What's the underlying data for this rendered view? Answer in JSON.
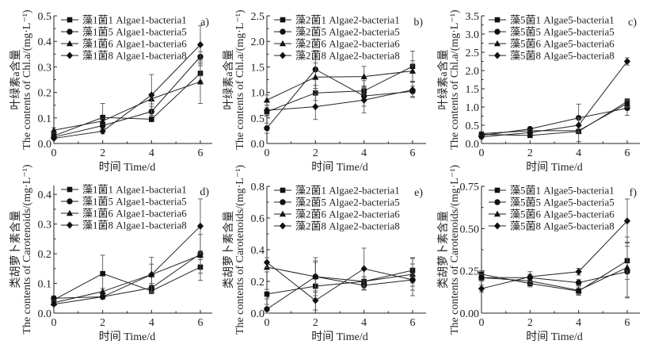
{
  "chart_data": [
    {
      "id": "a",
      "type": "line",
      "panel_label": "a)",
      "xlabel": "时间 Time/d",
      "ylabel_cn": "叶绿素a含量",
      "ylabel_en": "The contents of Chl.a/(mg·L⁻¹)",
      "x": [
        0,
        2,
        4,
        6
      ],
      "xticks": [
        "0",
        "2",
        "4",
        "6"
      ],
      "ylim": [
        0,
        0.5
      ],
      "yticks": [
        "0.0",
        "0.1",
        "0.2",
        "0.3",
        "0.4",
        "0.5"
      ],
      "legend_position": "top-left",
      "series": [
        {
          "name": "藻1菌1 Algae1-bacteria1",
          "marker": "square",
          "values": [
            0.03,
            0.102,
            0.095,
            0.275
          ],
          "errors": [
            0.008,
            0.055,
            0.01,
            0.03
          ]
        },
        {
          "name": "藻1菌5 Algae1-bacteria5",
          "marker": "circle",
          "values": [
            0.025,
            0.07,
            0.125,
            0.34
          ],
          "errors": [
            0.008,
            0.01,
            0.02,
            0.02
          ]
        },
        {
          "name": "藻1菌6  Algae1-bacteria6",
          "marker": "triangle",
          "values": [
            0.052,
            0.088,
            0.175,
            0.242
          ],
          "errors": [
            0.01,
            0.01,
            0.02,
            0.085
          ]
        },
        {
          "name": "藻1菌8 Algae1-bacteria8",
          "marker": "diamond",
          "values": [
            0.02,
            0.048,
            0.19,
            0.387
          ],
          "errors": [
            0.005,
            0.01,
            0.08,
            0.075
          ]
        }
      ]
    },
    {
      "id": "b",
      "type": "line",
      "panel_label": "b)",
      "xlabel": "时间 Time/d",
      "ylabel_cn": "叶绿素a含量",
      "ylabel_en": "The contents of Chl.a/(mg·L⁻¹)",
      "x": [
        0,
        2,
        4,
        6
      ],
      "xticks": [
        "0",
        "2",
        "4",
        "6"
      ],
      "ylim": [
        0,
        2.5
      ],
      "yticks": [
        "0.0",
        "0.5",
        "1.0",
        "1.5",
        "2.0",
        "2.5"
      ],
      "legend_position": "top-left",
      "series": [
        {
          "name": "藻2菌1 Algae2-bacteria1",
          "marker": "square",
          "values": [
            0.62,
            0.99,
            1.03,
            1.51
          ],
          "errors": [
            0.08,
            0.15,
            0.2,
            0.3
          ]
        },
        {
          "name": "藻2菌5 Algae2-bacteria5",
          "marker": "circle",
          "values": [
            0.3,
            1.45,
            0.93,
            1.02
          ],
          "errors": [
            0.1,
            0.37,
            0.2,
            0.1
          ]
        },
        {
          "name": "藻2菌6  Algae2-bacteria6",
          "marker": "triangle",
          "values": [
            0.85,
            1.3,
            1.31,
            1.42
          ],
          "errors": [
            0.1,
            0.28,
            0.2,
            0.2
          ]
        },
        {
          "name": "藻2菌8 Algae2-bacteria8",
          "marker": "diamond",
          "values": [
            0.65,
            0.72,
            0.85,
            1.05
          ],
          "errors": [
            0.1,
            0.25,
            0.25,
            0.15
          ]
        }
      ]
    },
    {
      "id": "c",
      "type": "line",
      "panel_label": "c)",
      "xlabel": "时间 Time/d",
      "ylabel_cn": "叶绿素a含量",
      "ylabel_en": "The contents of Chl.a/(mg·L⁻¹)",
      "x": [
        0,
        2,
        4,
        6
      ],
      "xticks": [
        "0",
        "2",
        "4",
        "6"
      ],
      "ylim": [
        0,
        3.5
      ],
      "yticks": [
        "0.0",
        "0.5",
        "1.0",
        "1.5",
        "2.0",
        "2.5",
        "3.0",
        "3.5"
      ],
      "legend_position": "top-left",
      "series": [
        {
          "name": "藻5菌1 Algae5-bacteria1",
          "marker": "square",
          "values": [
            0.25,
            0.22,
            0.33,
            1.15
          ],
          "errors": [
            0.05,
            0.03,
            0.05,
            0.08
          ]
        },
        {
          "name": "藻5菌5 Algae5-bacteria5",
          "marker": "circle",
          "values": [
            0.22,
            0.4,
            0.7,
            0.97
          ],
          "errors": [
            0.05,
            0.03,
            0.38,
            0.2
          ]
        },
        {
          "name": "藻5菌6  Algae5-bacteria6",
          "marker": "triangle",
          "values": [
            0.27,
            0.35,
            0.35,
            1.1
          ],
          "errors": [
            0.05,
            0.03,
            0.3,
            0.1
          ]
        },
        {
          "name": "藻5菌8 Algae5-bacteria8",
          "marker": "diamond",
          "values": [
            0.18,
            0.3,
            0.5,
            2.25
          ],
          "errors": [
            0.05,
            0.03,
            0.2,
            0.1
          ]
        }
      ]
    },
    {
      "id": "d",
      "type": "line",
      "panel_label": "d)",
      "xlabel": "时间 Time/d",
      "ylabel_cn": "类胡萝卜素含量",
      "ylabel_en": "The contents of Carotenoids/(mg·L⁻¹)",
      "x": [
        0,
        2,
        4,
        6
      ],
      "xticks": [
        "0",
        "2",
        "4",
        "6"
      ],
      "ylim": [
        0,
        0.43
      ],
      "yticks": [
        "0.0",
        "0.1",
        "0.2",
        "0.3",
        "0.4"
      ],
      "legend_position": "top-left",
      "series": [
        {
          "name": "藻1菌1 Algae1-bacteria1",
          "marker": "square",
          "values": [
            0.045,
            0.133,
            0.075,
            0.155
          ],
          "errors": [
            0.008,
            0.062,
            0.01,
            0.045
          ]
        },
        {
          "name": "藻1菌5 Algae1-bacteria5",
          "marker": "circle",
          "values": [
            0.05,
            0.055,
            0.085,
            0.2
          ],
          "errors": [
            0.008,
            0.008,
            0.015,
            0.065
          ]
        },
        {
          "name": "藻1菌6  Algae1-bacteria6",
          "marker": "triangle",
          "values": [
            0.035,
            0.073,
            0.13,
            0.195
          ],
          "errors": [
            0.008,
            0.01,
            0.035,
            0.015
          ]
        },
        {
          "name": "藻1菌8 Algae1-bacteria8",
          "marker": "diamond",
          "values": [
            0.03,
            0.055,
            0.13,
            0.293
          ],
          "errors": [
            0.005,
            0.008,
            0.058,
            0.092
          ]
        }
      ]
    },
    {
      "id": "e",
      "type": "line",
      "panel_label": "e)",
      "xlabel": "时间 Time/d",
      "ylabel_cn": "类胡萝卜素含量",
      "ylabel_en": "The contents of Carotenoids/(mg·L⁻¹)",
      "x": [
        0,
        2,
        4,
        6
      ],
      "xticks": [
        "0",
        "2",
        "4",
        "6"
      ],
      "ylim": [
        0,
        0.8
      ],
      "yticks": [
        "0.0",
        "0.2",
        "0.4",
        "0.6",
        "0.8"
      ],
      "legend_position": "top-left",
      "series": [
        {
          "name": "藻2菌1 Algae2-bacteria1",
          "marker": "square",
          "values": [
            0.12,
            0.17,
            0.2,
            0.27
          ],
          "errors": [
            0.03,
            0.15,
            0.03,
            0.08
          ]
        },
        {
          "name": "藻2菌5 Algae2-bacteria5",
          "marker": "circle",
          "values": [
            0.025,
            0.23,
            0.175,
            0.21
          ],
          "errors": [
            0.03,
            0.12,
            0.03,
            0.1
          ]
        },
        {
          "name": "藻2菌6  Algae2-bacteria6",
          "marker": "triangle",
          "values": [
            0.29,
            0.23,
            0.2,
            0.245
          ],
          "errors": [
            0.03,
            0.1,
            0.03,
            0.1
          ]
        },
        {
          "name": "藻2菌8 Algae2-bacteria8",
          "marker": "diamond",
          "values": [
            0.32,
            0.08,
            0.28,
            0.21
          ],
          "errors": [
            0.03,
            0.06,
            0.13,
            0.04
          ]
        }
      ]
    },
    {
      "id": "f",
      "type": "line",
      "panel_label": "f)",
      "xlabel": "时间 Time/d",
      "ylabel_cn": "类胡萝卜素含量",
      "ylabel_en": "The contents of Carotenoids/(mg·L⁻¹)",
      "x": [
        0,
        2,
        4,
        6
      ],
      "xticks": [
        "0",
        "2",
        "4",
        "6"
      ],
      "ylim": [
        0,
        0.75
      ],
      "yticks": [
        "0.00",
        "0.25",
        "0.50",
        "0.75"
      ],
      "legend_position": "top-left",
      "series": [
        {
          "name": "藻5菌1 Algae5-bacteria1",
          "marker": "square",
          "values": [
            0.23,
            0.175,
            0.13,
            0.31
          ],
          "errors": [
            0.02,
            0.02,
            0.02,
            0.11
          ]
        },
        {
          "name": "藻5菌5 Algae5-bacteria5",
          "marker": "circle",
          "values": [
            0.21,
            0.21,
            0.18,
            0.245
          ],
          "errors": [
            0.02,
            0.02,
            0.02,
            0.15
          ]
        },
        {
          "name": "藻5菌6  Algae5-bacteria6",
          "marker": "triangle",
          "values": [
            0.21,
            0.19,
            0.135,
            0.27
          ],
          "errors": [
            0.02,
            0.02,
            0.03,
            0.18
          ]
        },
        {
          "name": "藻5菌8 Algae5-bacteria8",
          "marker": "diamond",
          "values": [
            0.145,
            0.215,
            0.245,
            0.545
          ],
          "errors": [
            0.02,
            0.03,
            0.02,
            0.13
          ]
        }
      ]
    }
  ]
}
